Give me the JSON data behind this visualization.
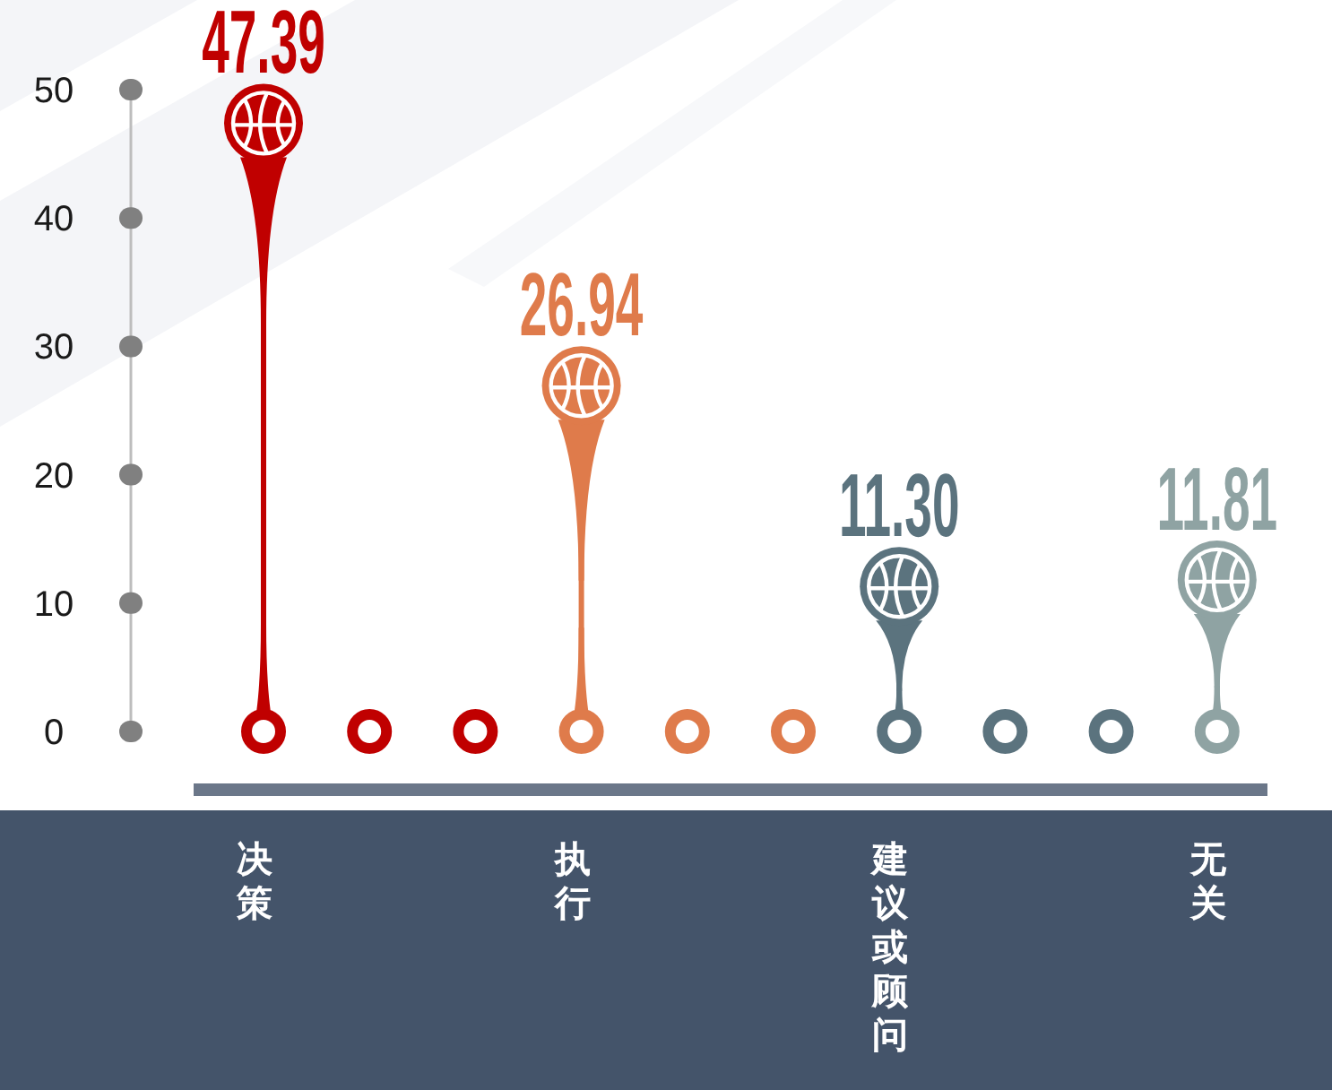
{
  "chart_data": {
    "type": "lollipop",
    "categories": [
      "决策",
      "执行",
      "建议或顾问",
      "无关"
    ],
    "values": [
      47.39,
      26.94,
      11.3,
      11.81
    ],
    "value_labels": [
      "47.39",
      "26.94",
      "11.30",
      "11.81"
    ],
    "colors": [
      "#c00000",
      "#df7b4b",
      "#5b737e",
      "#8fa3a3"
    ],
    "ylim": [
      0,
      50
    ],
    "yticks": [
      0,
      10,
      20,
      30,
      40,
      50
    ]
  }
}
